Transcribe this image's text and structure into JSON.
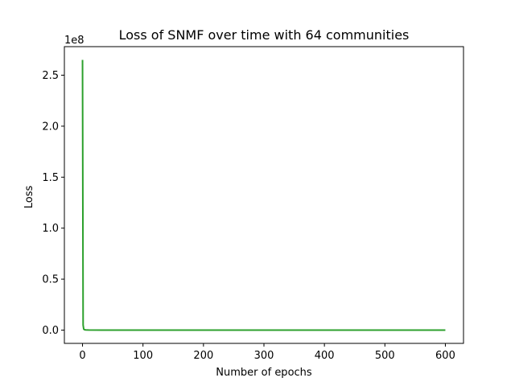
{
  "chart_data": {
    "type": "line",
    "title": "Loss of SNMF over time with 64 communities",
    "xlabel": "Number of epochs",
    "ylabel": "Loss",
    "y_offset_label": "1e8",
    "xlim": [
      -30,
      630
    ],
    "ylim": [
      -0.13,
      2.78
    ],
    "x_ticks": [
      0,
      100,
      200,
      300,
      400,
      500,
      600
    ],
    "x_tick_labels": [
      "0",
      "100",
      "200",
      "300",
      "400",
      "500",
      "600"
    ],
    "y_ticks": [
      0.0,
      0.5,
      1.0,
      1.5,
      2.0,
      2.5
    ],
    "y_tick_labels": [
      "0.0",
      "0.5",
      "1.0",
      "1.5",
      "2.0",
      "2.5"
    ],
    "grid": false,
    "series": [
      {
        "color": "#2ca02c",
        "x": [
          0,
          1,
          2,
          3,
          5,
          10,
          50,
          100,
          200,
          300,
          400,
          500,
          600
        ],
        "y": [
          2.65,
          0.05,
          0.01,
          0.005,
          0.002,
          0.001,
          0.0,
          0.0,
          0.0,
          0.0,
          0.0,
          0.0,
          0.0
        ]
      }
    ]
  }
}
